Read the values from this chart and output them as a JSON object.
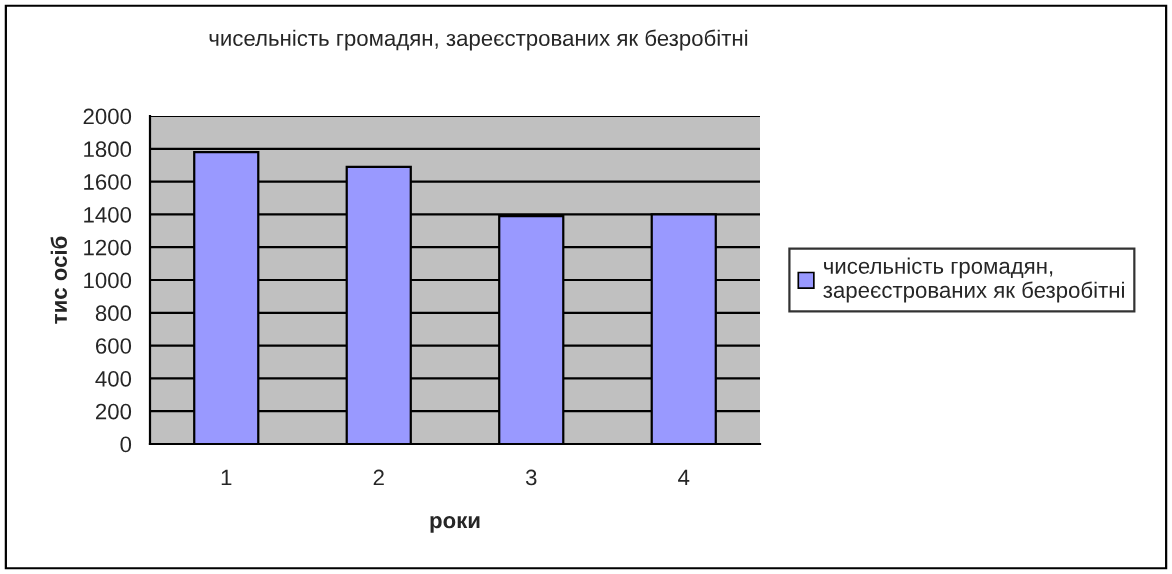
{
  "chart_data": {
    "type": "bar",
    "title": "чисельність громадян, зареєстрованих як безробітні",
    "xlabel": "роки",
    "ylabel": "тис осіб",
    "categories": [
      "1",
      "2",
      "3",
      "4"
    ],
    "series": [
      {
        "name": "чисельність громадян, зареєстрованих як безробітні",
        "color": "#9999ff",
        "values": [
          1780,
          1690,
          1390,
          1400
        ]
      }
    ],
    "ylim": [
      0,
      2000
    ],
    "yticks": [
      0,
      200,
      400,
      600,
      800,
      1000,
      1200,
      1400,
      1600,
      1800,
      2000
    ],
    "grid": "y",
    "legend": "right"
  }
}
